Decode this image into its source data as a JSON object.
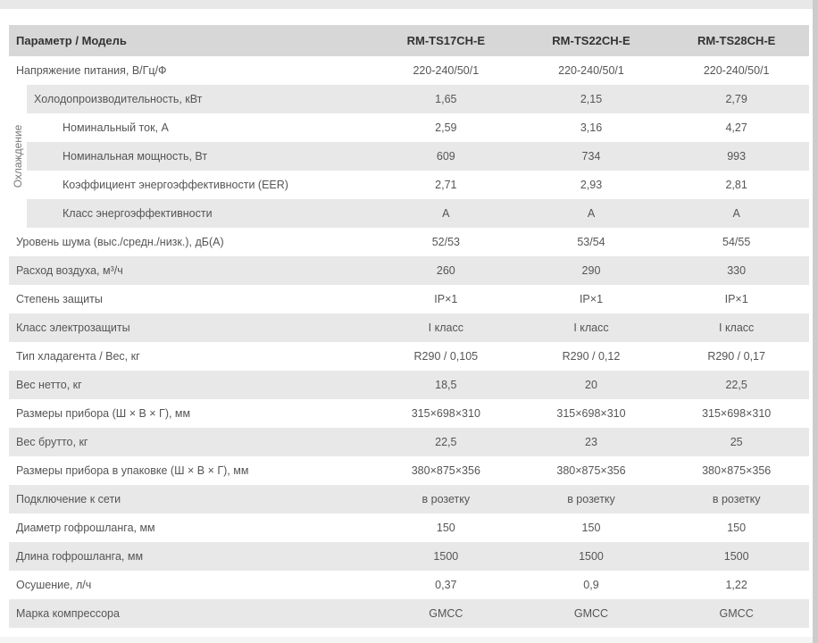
{
  "table": {
    "header": {
      "param": "Параметр / Модель",
      "models": [
        "RM-TS17CH-E",
        "RM-TS22CH-E",
        "RM-TS28CH-E"
      ]
    },
    "group_label": "Охлаждение",
    "rows": [
      {
        "param": "Напряжение питания, В/Гц/Ф",
        "v1": "220-240/50/1",
        "v2": "220-240/50/1",
        "v3": "220-240/50/1",
        "alt": false,
        "sub": false,
        "group": false
      },
      {
        "param": "Холодопроизводительность, кВт",
        "v1": "1,65",
        "v2": "2,15",
        "v3": "2,79",
        "alt": true,
        "sub": true,
        "group": "start"
      },
      {
        "param": "Номинальный ток, А",
        "v1": "2,59",
        "v2": "3,16",
        "v3": "4,27",
        "alt": false,
        "sub": true,
        "group": true
      },
      {
        "param": "Номинальная мощность, Вт",
        "v1": "609",
        "v2": "734",
        "v3": "993",
        "alt": true,
        "sub": true,
        "group": true
      },
      {
        "param": "Коэффициент энергоэффективности (EER)",
        "v1": "2,71",
        "v2": "2,93",
        "v3": "2,81",
        "alt": false,
        "sub": true,
        "group": true
      },
      {
        "param": "Класс энергоэффективности",
        "v1": "A",
        "v2": "A",
        "v3": "A",
        "alt": true,
        "sub": true,
        "group": true
      },
      {
        "param": "Уровень шума (выс./средн./низк.), дБ(А)",
        "v1": "52/53",
        "v2": "53/54",
        "v3": "54/55",
        "alt": false,
        "sub": false,
        "group": false
      },
      {
        "param": "Расход воздуха, м³/ч",
        "v1": "260",
        "v2": "290",
        "v3": "330",
        "alt": true,
        "sub": false,
        "group": false
      },
      {
        "param": "Степень защиты",
        "v1": "IP×1",
        "v2": "IP×1",
        "v3": "IP×1",
        "alt": false,
        "sub": false,
        "group": false
      },
      {
        "param": "Класс электрозащиты",
        "v1": "I класс",
        "v2": "I класс",
        "v3": "I класс",
        "alt": true,
        "sub": false,
        "group": false
      },
      {
        "param": "Тип хладагента / Вес, кг",
        "v1": "R290 / 0,105",
        "v2": "R290 / 0,12",
        "v3": "R290 / 0,17",
        "alt": false,
        "sub": false,
        "group": false
      },
      {
        "param": "Вес нетто, кг",
        "v1": "18,5",
        "v2": "20",
        "v3": "22,5",
        "alt": true,
        "sub": false,
        "group": false
      },
      {
        "param": "Размеры прибора (Ш × В × Г), мм",
        "v1": "315×698×310",
        "v2": "315×698×310",
        "v3": "315×698×310",
        "alt": false,
        "sub": false,
        "group": false
      },
      {
        "param": "Вес брутто, кг",
        "v1": "22,5",
        "v2": "23",
        "v3": "25",
        "alt": true,
        "sub": false,
        "group": false
      },
      {
        "param": "Размеры прибора в упаковке (Ш × В × Г), мм",
        "v1": "380×875×356",
        "v2": "380×875×356",
        "v3": "380×875×356",
        "alt": false,
        "sub": false,
        "group": false
      },
      {
        "param": "Подключение к сети",
        "v1": "в розетку",
        "v2": "в розетку",
        "v3": "в розетку",
        "alt": true,
        "sub": false,
        "group": false
      },
      {
        "param": "Диаметр гофрошланга, мм",
        "v1": "150",
        "v2": "150",
        "v3": "150",
        "alt": false,
        "sub": false,
        "group": false
      },
      {
        "param": "Длина гофрошланга, мм",
        "v1": "1500",
        "v2": "1500",
        "v3": "1500",
        "alt": true,
        "sub": false,
        "group": false
      },
      {
        "param": "Осушение, л/ч",
        "v1": "0,37",
        "v2": "0,9",
        "v3": "1,22",
        "alt": false,
        "sub": false,
        "group": false
      },
      {
        "param": "Марка компрессора",
        "v1": "GMCC",
        "v2": "GMCC",
        "v3": "GMCC",
        "alt": true,
        "sub": false,
        "group": false
      }
    ]
  },
  "styles": {
    "header_bg": "#d7d7d7",
    "alt_bg": "#e8e8e8",
    "text_color": "#555",
    "font_size": 12.5
  }
}
